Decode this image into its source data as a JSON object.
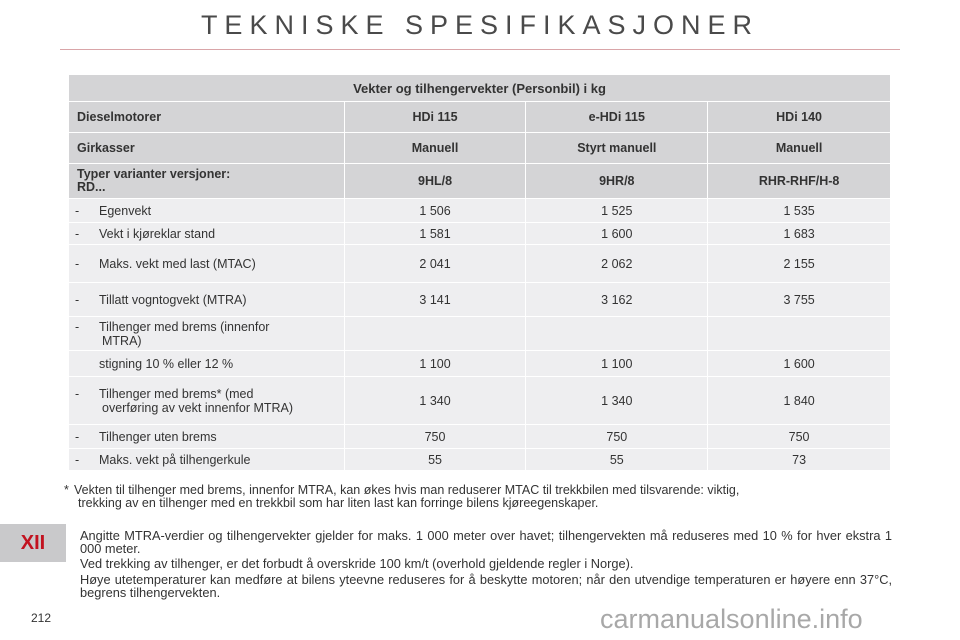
{
  "page": {
    "title": "TEKNISKE SPESIFIKASJONER",
    "chapter": "XII",
    "page_number": "212",
    "watermark": "carmanualsonline.info"
  },
  "table": {
    "heading": "Vekter og tilhengervekter (Personbil) i kg",
    "engines": {
      "label": "Dieselmotorer",
      "values": [
        "HDi 115",
        "e-HDi 115",
        "HDi 140"
      ]
    },
    "gearbox": {
      "label": "Girkasser",
      "values": [
        "Manuell",
        "Styrt manuell",
        "Manuell"
      ]
    },
    "variants": {
      "label_line1": "Typer varianter versjoner:",
      "label_line2": "RD...",
      "values": [
        "9HL/8",
        "9HR/8",
        "RHR-RHF/H-8"
      ]
    },
    "rows": [
      {
        "dash": "-",
        "label": "Egenvekt",
        "values": [
          "1 506",
          "1 525",
          "1 535"
        ]
      },
      {
        "dash": "-",
        "label": "Vekt i kjøreklar stand",
        "values": [
          "1 581",
          "1 600",
          "1 683"
        ]
      },
      {
        "dash": "-",
        "label": "Maks. vekt med last (MTAC)",
        "values": [
          "2 041",
          "2 062",
          "2 155"
        ]
      },
      {
        "dash": "-",
        "label": "Tillatt vogntogvekt (MTRA)",
        "values": [
          "3 141",
          "3 162",
          "3 755"
        ]
      },
      {
        "dash": "-",
        "label_line1": "Tilhenger med brems (innenfor",
        "label_line2": "MTRA)"
      },
      {
        "label": "stigning 10 % eller 12 %",
        "values": [
          "1 100",
          "1 100",
          "1 600"
        ]
      },
      {
        "dash": "-",
        "label_line1": "Tilhenger med brems* (med",
        "label_line2": "overføring av vekt innenfor MTRA)",
        "values": [
          "1 340",
          "1 340",
          "1 840"
        ]
      },
      {
        "dash": "-",
        "label": "Tilhenger uten brems",
        "values": [
          "750",
          "750",
          "750"
        ]
      },
      {
        "dash": "-",
        "label": "Maks. vekt på tilhengerkule",
        "values": [
          "55",
          "55",
          "73"
        ]
      }
    ]
  },
  "footnote": {
    "star": "*",
    "line1": "Vekten til tilhenger med brems, innenfor MTRA, kan økes hvis man reduserer MTAC til trekkbilen med tilsvarende: viktig,",
    "line2": "trekking av en tilhenger med en trekkbil som har liten last kan forringe bilens kjøreegenskaper."
  },
  "paragraphs": [
    "Angitte MTRA-verdier og tilhengervekter gjelder for maks. 1 000 meter over havet; tilhengervekten må reduseres med 10 % for hver ekstra 1 000 meter.",
    "Ved trekking av tilhenger, er det forbudt å overskride 100 km/t (overhold gjeldende regler i Norge).",
    "Høye utetemperaturer kan medføre at bilens yteevne reduseres for å beskytte motoren; når den utvendige temperaturen er høyere enn 37°C, begrens tilhengervekten."
  ],
  "colors": {
    "accent_red": "#c2121f",
    "header_grey": "#d4d4d6",
    "body_grey": "#eeeef0"
  }
}
